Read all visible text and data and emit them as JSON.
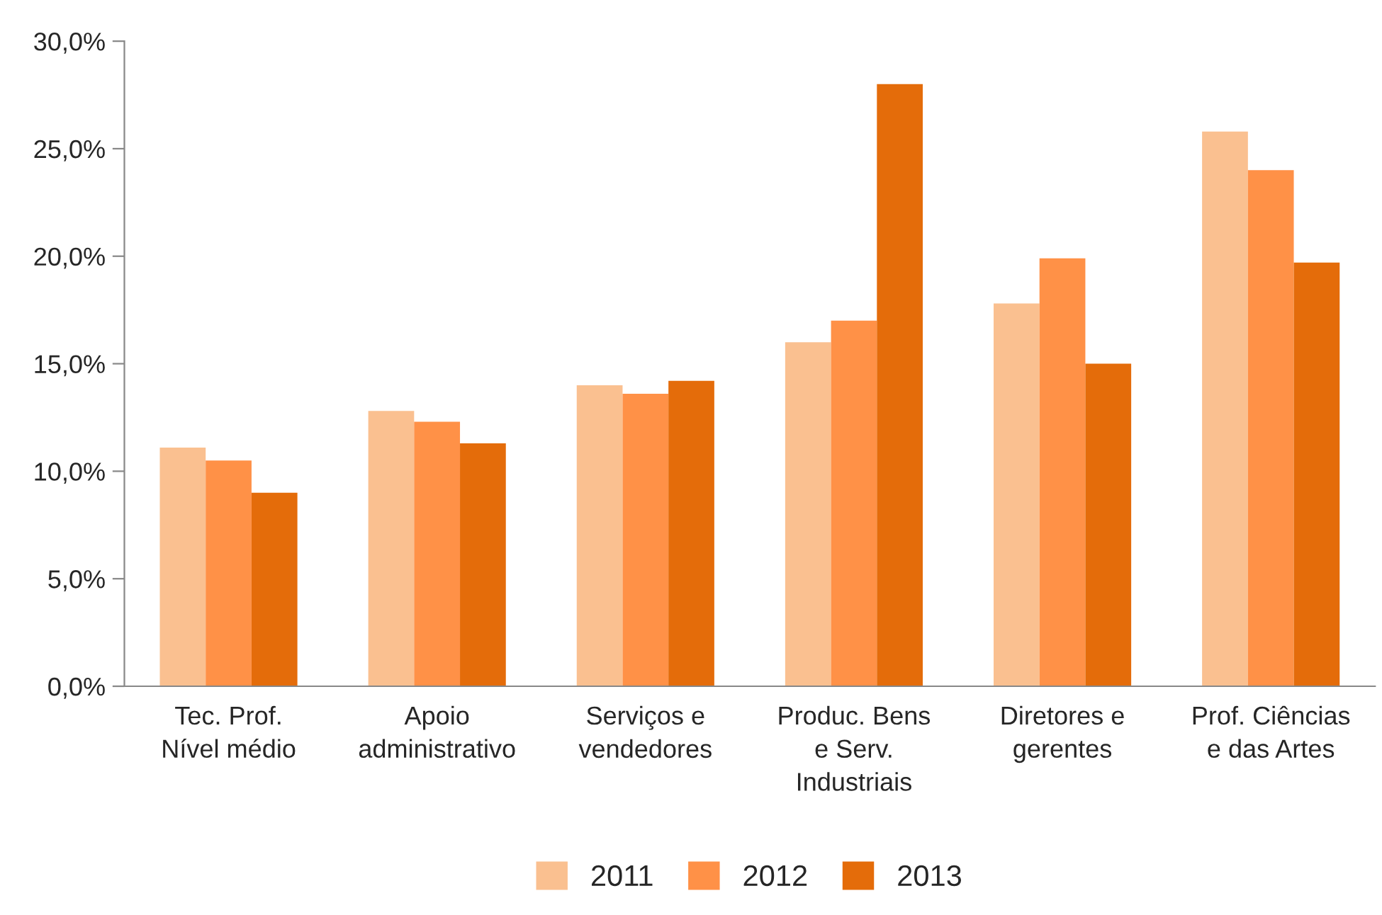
{
  "chart_data": {
    "type": "bar",
    "categories": [
      "Tec. Prof.\nNível médio",
      "Apoio\nadministrativo",
      "Serviços e\nvendedores",
      "Produc. Bens\ne Serv.\nIndustriais",
      "Diretores e\ngerentes",
      "Prof. Ciências\ne das Artes"
    ],
    "series": [
      {
        "name": "2011",
        "color": "#fac090",
        "values": [
          11.1,
          12.8,
          14.0,
          16.0,
          17.8,
          25.8
        ]
      },
      {
        "name": "2012",
        "color": "#ff9147",
        "values": [
          10.5,
          12.3,
          13.6,
          17.0,
          19.9,
          24.0
        ]
      },
      {
        "name": "2013",
        "color": "#e46c0a",
        "values": [
          9.0,
          11.3,
          14.2,
          28.0,
          15.0,
          19.7
        ]
      }
    ],
    "ylim": [
      0,
      30
    ],
    "yticks": [
      {
        "value": 0,
        "label": "0,0%"
      },
      {
        "value": 5,
        "label": "5,0%"
      },
      {
        "value": 10,
        "label": "10,0%"
      },
      {
        "value": 15,
        "label": "15,0%"
      },
      {
        "value": 20,
        "label": "20,0%"
      },
      {
        "value": 25,
        "label": "25,0%"
      },
      {
        "value": 30,
        "label": "30,0%"
      }
    ],
    "grid": false,
    "legend": "bottom"
  }
}
